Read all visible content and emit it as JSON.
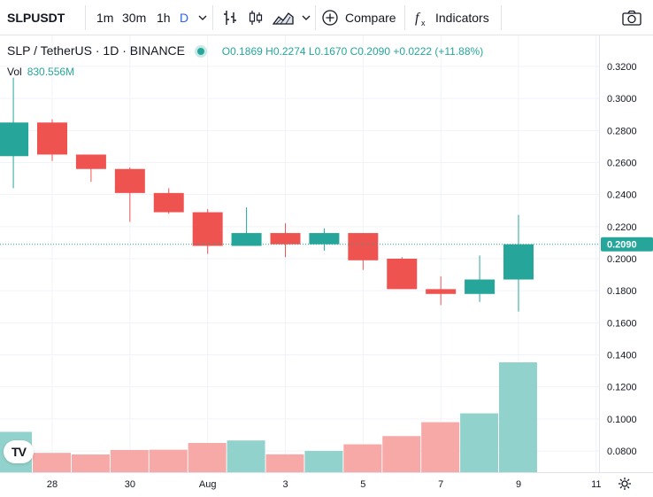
{
  "toolbar": {
    "symbol": "SLPUSDT",
    "intervals": [
      "1m",
      "30m",
      "1h",
      "D"
    ],
    "active_interval": "D",
    "compare_label": "Compare",
    "indicators_label": "Indicators"
  },
  "legend": {
    "title": "SLP / TetherUS · 1D · BINANCE",
    "open": "O0.1869",
    "high": "H0.2274",
    "low": "L0.1670",
    "close": "C0.2090",
    "change": "+0.0222 (+11.88%)",
    "vol_label": "Vol",
    "vol_value": "830.556M"
  },
  "logo_text": "TV",
  "colors": {
    "up": "#26a69a",
    "down": "#ef5350",
    "up_volume": "#92d2cc",
    "down_volume": "#f7a9a7",
    "grid": "#f0f3fa",
    "price_tag": "#26a69a"
  },
  "chart_data": {
    "type": "candlestick",
    "price_axis": {
      "ticks": [
        "0.3200",
        "0.3000",
        "0.2800",
        "0.2600",
        "0.2400",
        "0.2200",
        "0.2000",
        "0.1800",
        "0.1600",
        "0.1400",
        "0.1200",
        "0.1000",
        "0.0800"
      ],
      "range": [
        0.072,
        0.33
      ]
    },
    "current_price": 0.209,
    "current_price_label": "0.2090",
    "time_axis": {
      "ticks": [
        {
          "day": 28,
          "label": "28"
        },
        {
          "day": 30,
          "label": "30"
        },
        {
          "day": 32,
          "label": "Aug"
        },
        {
          "day": 34,
          "label": "3"
        },
        {
          "day": 36,
          "label": "5"
        },
        {
          "day": 38,
          "label": "7"
        },
        {
          "day": 40,
          "label": "9"
        },
        {
          "day": 42,
          "label": "11"
        }
      ]
    },
    "candles": [
      {
        "day": 27,
        "open": 0.264,
        "high": 0.313,
        "low": 0.244,
        "close": 0.285
      },
      {
        "day": 28,
        "open": 0.285,
        "high": 0.287,
        "low": 0.261,
        "close": 0.265
      },
      {
        "day": 29,
        "open": 0.265,
        "high": 0.265,
        "low": 0.248,
        "close": 0.256
      },
      {
        "day": 30,
        "open": 0.256,
        "high": 0.257,
        "low": 0.223,
        "close": 0.241
      },
      {
        "day": 31,
        "open": 0.241,
        "high": 0.244,
        "low": 0.228,
        "close": 0.229
      },
      {
        "day": 32,
        "open": 0.229,
        "high": 0.231,
        "low": 0.203,
        "close": 0.208
      },
      {
        "day": 33,
        "open": 0.208,
        "high": 0.232,
        "low": 0.208,
        "close": 0.216
      },
      {
        "day": 34,
        "open": 0.216,
        "high": 0.222,
        "low": 0.201,
        "close": 0.209
      },
      {
        "day": 35,
        "open": 0.209,
        "high": 0.219,
        "low": 0.205,
        "close": 0.216
      },
      {
        "day": 36,
        "open": 0.216,
        "high": 0.216,
        "low": 0.193,
        "close": 0.199
      },
      {
        "day": 37,
        "open": 0.2,
        "high": 0.201,
        "low": 0.181,
        "close": 0.181
      },
      {
        "day": 38,
        "open": 0.181,
        "high": 0.189,
        "low": 0.171,
        "close": 0.178
      },
      {
        "day": 39,
        "open": 0.178,
        "high": 0.202,
        "low": 0.173,
        "close": 0.187
      },
      {
        "day": 40,
        "open": 0.187,
        "high": 0.2274,
        "low": 0.167,
        "close": 0.209
      }
    ],
    "volumes": [
      {
        "day": 27,
        "value": 305,
        "direction": "up"
      },
      {
        "day": 28,
        "value": 146,
        "direction": "down"
      },
      {
        "day": 29,
        "value": 134,
        "direction": "down"
      },
      {
        "day": 30,
        "value": 168,
        "direction": "down"
      },
      {
        "day": 31,
        "value": 170,
        "direction": "down"
      },
      {
        "day": 32,
        "value": 221,
        "direction": "down"
      },
      {
        "day": 33,
        "value": 240,
        "direction": "up"
      },
      {
        "day": 34,
        "value": 135,
        "direction": "down"
      },
      {
        "day": 35,
        "value": 161,
        "direction": "up"
      },
      {
        "day": 36,
        "value": 211,
        "direction": "down"
      },
      {
        "day": 37,
        "value": 273,
        "direction": "down"
      },
      {
        "day": 38,
        "value": 378,
        "direction": "down"
      },
      {
        "day": 39,
        "value": 445,
        "direction": "up"
      },
      {
        "day": 40,
        "value": 830.556,
        "direction": "up"
      }
    ]
  }
}
